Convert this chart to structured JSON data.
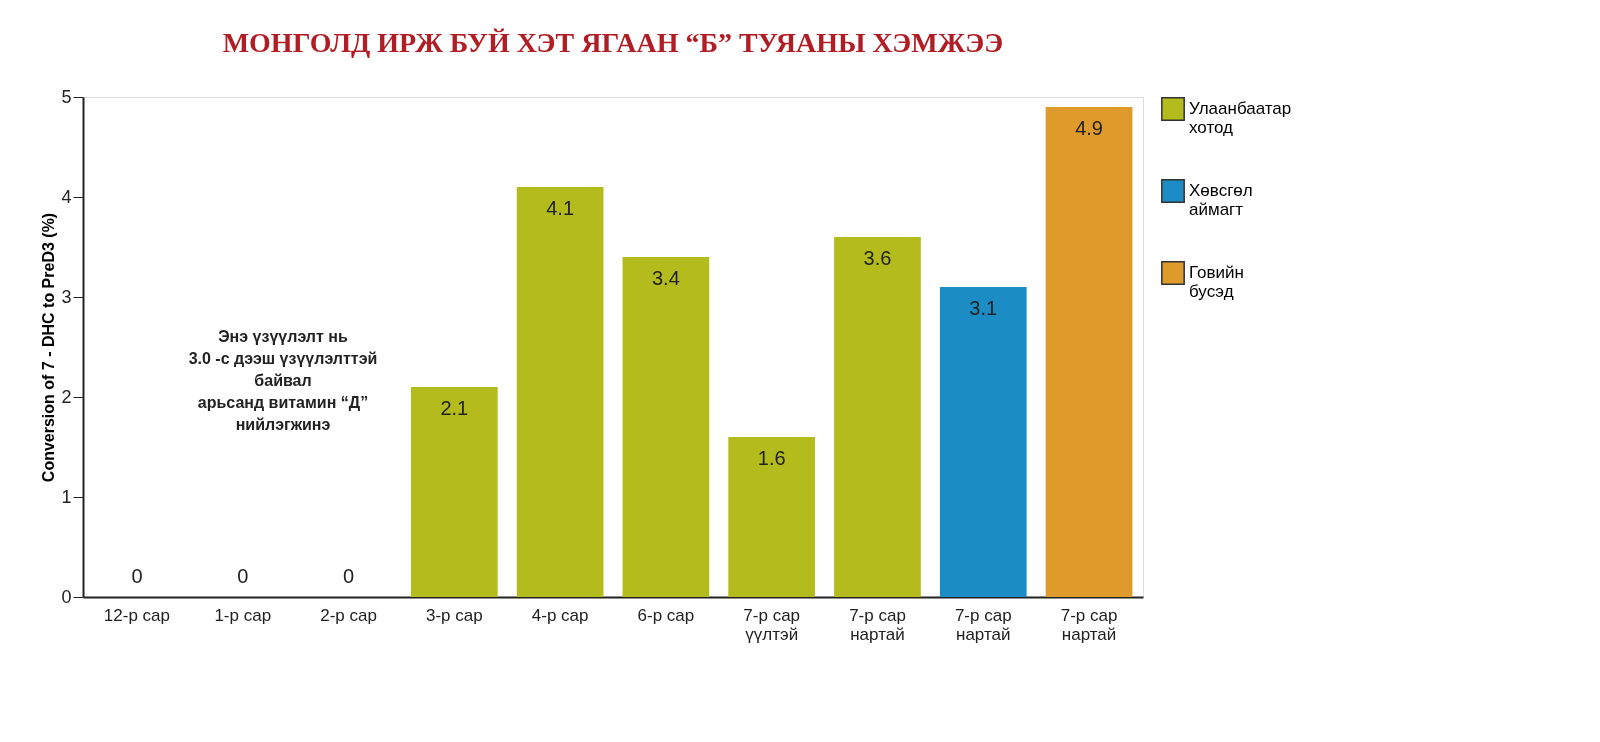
{
  "chart_data": {
    "type": "bar",
    "title": "МОНГОЛД ИРЖ БУЙ ХЭТ ЯГААН “Б” ТУЯАНЫ ХЭМЖЭЭ",
    "ylabel": "Conversion of 7 - DHC  to  PreD3 (%)",
    "categories": [
      "12-р сар",
      "1-р сар",
      "2-р сар",
      "3-р сар",
      "4-р сар",
      "6-р сар",
      "7-р сар\nүүлтэй",
      "7-р сар\nнартай",
      "7-р сар\nнартай",
      "7-р сар\nнартай"
    ],
    "series": [
      {
        "name": "Улаанбаатар\nхотод",
        "color": "#b3bc1c",
        "values": [
          0,
          0,
          0,
          2.1,
          4.1,
          3.4,
          1.6,
          3.6,
          null,
          null
        ]
      },
      {
        "name": "Хөвсгөл\nаймагт",
        "color": "#1b8cc4",
        "values": [
          null,
          null,
          null,
          null,
          null,
          null,
          null,
          null,
          3.1,
          null
        ]
      },
      {
        "name": "Говийн\nбусэд",
        "color": "#de9a2b",
        "values": [
          null,
          null,
          null,
          null,
          null,
          null,
          null,
          null,
          null,
          4.9
        ]
      }
    ],
    "ylim": [
      0,
      5
    ],
    "yticks": [
      0,
      1,
      2,
      3,
      4,
      5
    ],
    "grid": false,
    "legend": "right",
    "data_labels": true,
    "annotations": [
      "Энэ үзүүлэлт нь\n3.0 -с дээш үзүүлэлттэй\nбайвал\nарьсанд витамин “Д”\nнийлэгжинэ"
    ]
  }
}
